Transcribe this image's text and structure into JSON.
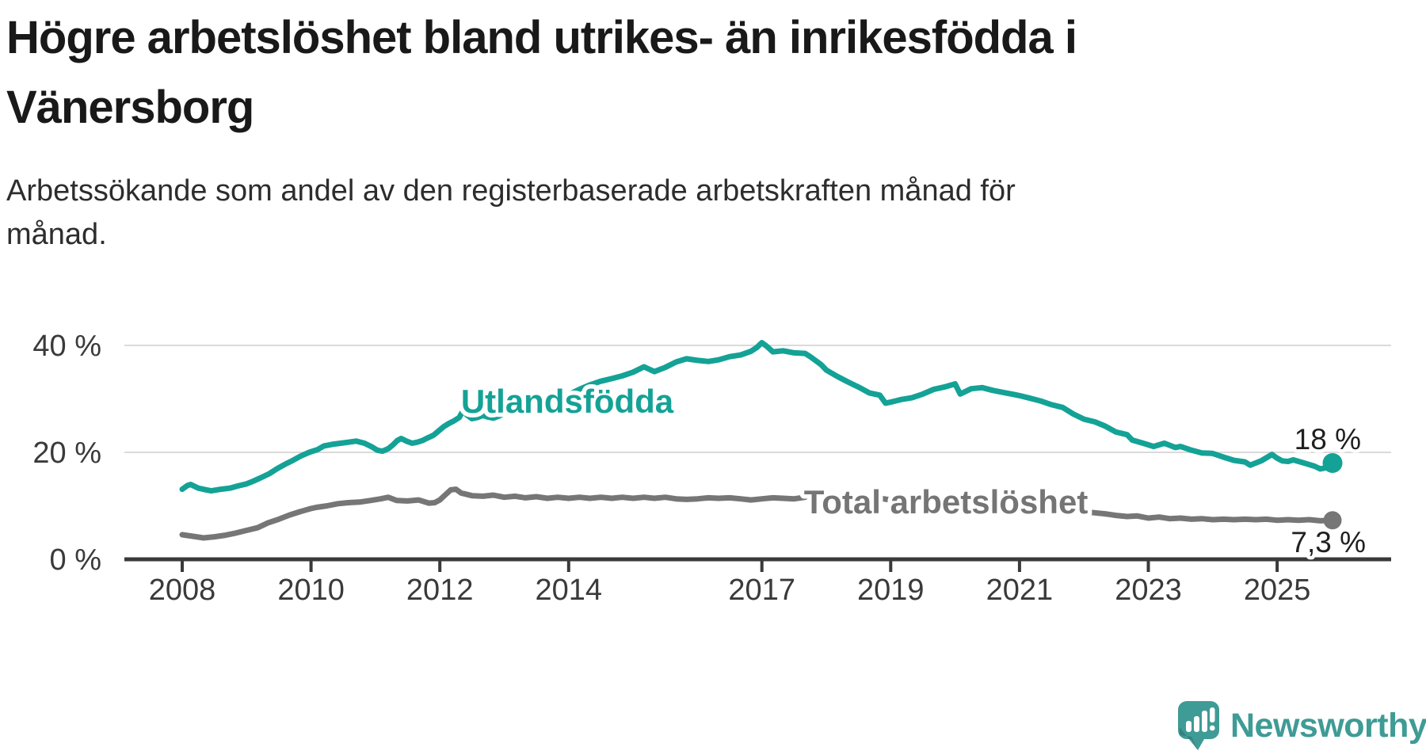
{
  "page": {
    "title_lines": [
      "Högre arbetslöshet bland utrikes- än inrikesfödda i",
      "Vänersborg"
    ],
    "subtitle_lines": [
      "Arbetssökande som andel av den registerbaserade arbetskraften månad för",
      "månad."
    ]
  },
  "logo": {
    "name": "Newsworthy",
    "icon": "speech-bubble-bar-chart-icon"
  },
  "colors": {
    "accent_teal": "#14a296",
    "total_gray": "#767676",
    "logo_teal": "#3f9b95",
    "title_text": "#191919",
    "body_text": "#2d2d2d",
    "axis_text": "#3a3a3a",
    "axis_line": "#3a3a3a",
    "gridline": "#dadada",
    "annotation_text": "#1f1f1f",
    "background": "#ffffff"
  },
  "chart_data": {
    "type": "line",
    "title": "Högre arbetslöshet bland utrikes- än inrikesfödda i Vänersborg",
    "subtitle": "Arbetssökande som andel av den registerbaserade arbetskraften månad för månad.",
    "xlabel": "",
    "ylabel": "",
    "grid": "horizontal",
    "legend": "inline-labels",
    "xlim": [
      2007.1,
      2026.8
    ],
    "ylim": [
      0,
      44
    ],
    "x_ticks": [
      2008,
      2010,
      2012,
      2014,
      2017,
      2019,
      2021,
      2023,
      2025
    ],
    "y_ticks": [
      {
        "value": 0,
        "label": "0 %"
      },
      {
        "value": 20,
        "label": "20 %"
      },
      {
        "value": 40,
        "label": "40 %"
      }
    ],
    "series": [
      {
        "name": "Utlandsfödda",
        "end_label": "18 %",
        "end_value": 18,
        "color": "#14a296",
        "points": [
          [
            2008.0,
            13.1
          ],
          [
            2008.08,
            13.8
          ],
          [
            2008.13,
            14.0
          ],
          [
            2008.25,
            13.3
          ],
          [
            2008.37,
            13.0
          ],
          [
            2008.45,
            12.8
          ],
          [
            2008.6,
            13.1
          ],
          [
            2008.74,
            13.3
          ],
          [
            2008.86,
            13.7
          ],
          [
            2009.0,
            14.1
          ],
          [
            2009.1,
            14.6
          ],
          [
            2009.23,
            15.3
          ],
          [
            2009.35,
            16.0
          ],
          [
            2009.48,
            17.0
          ],
          [
            2009.6,
            17.8
          ],
          [
            2009.72,
            18.5
          ],
          [
            2009.84,
            19.3
          ],
          [
            2009.97,
            20.0
          ],
          [
            2010.1,
            20.5
          ],
          [
            2010.2,
            21.2
          ],
          [
            2010.33,
            21.5
          ],
          [
            2010.46,
            21.7
          ],
          [
            2010.58,
            21.9
          ],
          [
            2010.7,
            22.1
          ],
          [
            2010.83,
            21.7
          ],
          [
            2010.95,
            21.0
          ],
          [
            2011.03,
            20.4
          ],
          [
            2011.11,
            20.2
          ],
          [
            2011.2,
            20.7
          ],
          [
            2011.28,
            21.5
          ],
          [
            2011.34,
            22.2
          ],
          [
            2011.4,
            22.6
          ],
          [
            2011.48,
            22.1
          ],
          [
            2011.57,
            21.7
          ],
          [
            2011.65,
            21.9
          ],
          [
            2011.73,
            22.2
          ],
          [
            2011.81,
            22.7
          ],
          [
            2011.9,
            23.2
          ],
          [
            2011.98,
            24.0
          ],
          [
            2012.06,
            24.8
          ],
          [
            2012.14,
            25.4
          ],
          [
            2012.22,
            25.9
          ],
          [
            2012.3,
            26.5
          ],
          [
            2012.37,
            28.0
          ],
          [
            2012.42,
            27.0
          ],
          [
            2012.5,
            26.3
          ],
          [
            2012.58,
            26.5
          ],
          [
            2012.67,
            26.9
          ],
          [
            2012.75,
            26.6
          ],
          [
            2012.83,
            26.4
          ],
          [
            2012.92,
            26.8
          ],
          [
            2013.0,
            27.3
          ],
          [
            2013.17,
            27.8
          ],
          [
            2013.33,
            27.6
          ],
          [
            2013.5,
            28.1
          ],
          [
            2013.67,
            29.3
          ],
          [
            2013.83,
            30.0
          ],
          [
            2014.0,
            30.8
          ],
          [
            2014.17,
            31.8
          ],
          [
            2014.33,
            32.6
          ],
          [
            2014.5,
            33.3
          ],
          [
            2014.67,
            33.8
          ],
          [
            2014.83,
            34.3
          ],
          [
            2015.0,
            35.0
          ],
          [
            2015.17,
            36.0
          ],
          [
            2015.33,
            35.1
          ],
          [
            2015.5,
            35.9
          ],
          [
            2015.67,
            36.9
          ],
          [
            2015.83,
            37.5
          ],
          [
            2016.0,
            37.2
          ],
          [
            2016.17,
            37.0
          ],
          [
            2016.33,
            37.3
          ],
          [
            2016.5,
            37.9
          ],
          [
            2016.67,
            38.2
          ],
          [
            2016.83,
            38.9
          ],
          [
            2016.92,
            39.6
          ],
          [
            2017.0,
            40.5
          ],
          [
            2017.08,
            39.8
          ],
          [
            2017.17,
            38.8
          ],
          [
            2017.33,
            39.0
          ],
          [
            2017.5,
            38.6
          ],
          [
            2017.67,
            38.5
          ],
          [
            2017.75,
            37.9
          ],
          [
            2017.83,
            37.2
          ],
          [
            2017.92,
            36.4
          ],
          [
            2018.0,
            35.4
          ],
          [
            2018.17,
            34.2
          ],
          [
            2018.33,
            33.2
          ],
          [
            2018.5,
            32.2
          ],
          [
            2018.67,
            31.1
          ],
          [
            2018.83,
            30.7
          ],
          [
            2018.92,
            29.2
          ],
          [
            2019.0,
            29.4
          ],
          [
            2019.17,
            29.9
          ],
          [
            2019.33,
            30.2
          ],
          [
            2019.5,
            30.9
          ],
          [
            2019.67,
            31.8
          ],
          [
            2019.83,
            32.2
          ],
          [
            2020.0,
            32.8
          ],
          [
            2020.08,
            30.9
          ],
          [
            2020.25,
            31.9
          ],
          [
            2020.42,
            32.1
          ],
          [
            2020.58,
            31.6
          ],
          [
            2020.75,
            31.2
          ],
          [
            2020.92,
            30.8
          ],
          [
            2021.0,
            30.6
          ],
          [
            2021.17,
            30.1
          ],
          [
            2021.33,
            29.6
          ],
          [
            2021.5,
            28.9
          ],
          [
            2021.67,
            28.4
          ],
          [
            2021.83,
            27.2
          ],
          [
            2022.0,
            26.2
          ],
          [
            2022.17,
            25.7
          ],
          [
            2022.33,
            24.9
          ],
          [
            2022.5,
            23.8
          ],
          [
            2022.67,
            23.3
          ],
          [
            2022.75,
            22.3
          ],
          [
            2022.92,
            21.7
          ],
          [
            2023.0,
            21.4
          ],
          [
            2023.08,
            21.1
          ],
          [
            2023.25,
            21.7
          ],
          [
            2023.42,
            20.9
          ],
          [
            2023.5,
            21.1
          ],
          [
            2023.67,
            20.4
          ],
          [
            2023.83,
            19.9
          ],
          [
            2024.0,
            19.8
          ],
          [
            2024.17,
            19.1
          ],
          [
            2024.33,
            18.5
          ],
          [
            2024.5,
            18.2
          ],
          [
            2024.58,
            17.6
          ],
          [
            2024.75,
            18.4
          ],
          [
            2024.92,
            19.6
          ],
          [
            2025.0,
            18.9
          ],
          [
            2025.08,
            18.4
          ],
          [
            2025.17,
            18.3
          ],
          [
            2025.25,
            18.6
          ],
          [
            2025.42,
            18.0
          ],
          [
            2025.58,
            17.4
          ],
          [
            2025.67,
            16.9
          ],
          [
            2025.75,
            17.1
          ],
          [
            2025.86,
            18.0
          ]
        ]
      },
      {
        "name": "Total arbetslöshet",
        "end_label": "7,3 %",
        "end_value": 7.3,
        "color": "#767676",
        "points": [
          [
            2008.0,
            4.6
          ],
          [
            2008.17,
            4.3
          ],
          [
            2008.33,
            4.0
          ],
          [
            2008.5,
            4.2
          ],
          [
            2008.67,
            4.5
          ],
          [
            2008.83,
            4.9
          ],
          [
            2009.0,
            5.4
          ],
          [
            2009.17,
            5.9
          ],
          [
            2009.33,
            6.8
          ],
          [
            2009.5,
            7.5
          ],
          [
            2009.67,
            8.3
          ],
          [
            2009.83,
            8.9
          ],
          [
            2010.0,
            9.5
          ],
          [
            2010.08,
            9.7
          ],
          [
            2010.25,
            10.0
          ],
          [
            2010.42,
            10.4
          ],
          [
            2010.58,
            10.6
          ],
          [
            2010.75,
            10.7
          ],
          [
            2010.92,
            11.0
          ],
          [
            2011.08,
            11.3
          ],
          [
            2011.2,
            11.6
          ],
          [
            2011.33,
            11.0
          ],
          [
            2011.5,
            10.9
          ],
          [
            2011.67,
            11.1
          ],
          [
            2011.83,
            10.5
          ],
          [
            2011.92,
            10.6
          ],
          [
            2012.0,
            11.1
          ],
          [
            2012.08,
            12.0
          ],
          [
            2012.17,
            13.0
          ],
          [
            2012.25,
            13.1
          ],
          [
            2012.33,
            12.4
          ],
          [
            2012.5,
            11.9
          ],
          [
            2012.67,
            11.8
          ],
          [
            2012.83,
            12.0
          ],
          [
            2013.0,
            11.6
          ],
          [
            2013.17,
            11.8
          ],
          [
            2013.33,
            11.5
          ],
          [
            2013.5,
            11.7
          ],
          [
            2013.67,
            11.4
          ],
          [
            2013.83,
            11.6
          ],
          [
            2014.0,
            11.4
          ],
          [
            2014.17,
            11.6
          ],
          [
            2014.33,
            11.4
          ],
          [
            2014.5,
            11.6
          ],
          [
            2014.67,
            11.4
          ],
          [
            2014.83,
            11.6
          ],
          [
            2015.0,
            11.4
          ],
          [
            2015.17,
            11.6
          ],
          [
            2015.33,
            11.4
          ],
          [
            2015.5,
            11.6
          ],
          [
            2015.67,
            11.3
          ],
          [
            2015.83,
            11.2
          ],
          [
            2016.0,
            11.3
          ],
          [
            2016.17,
            11.5
          ],
          [
            2016.33,
            11.4
          ],
          [
            2016.5,
            11.5
          ],
          [
            2016.67,
            11.3
          ],
          [
            2016.83,
            11.1
          ],
          [
            2017.0,
            11.3
          ],
          [
            2017.17,
            11.5
          ],
          [
            2017.33,
            11.4
          ],
          [
            2017.5,
            11.3
          ],
          [
            2017.67,
            11.6
          ],
          [
            2017.83,
            12.8
          ],
          [
            2017.92,
            12.6
          ],
          [
            2018.0,
            12.2
          ],
          [
            2018.17,
            11.8
          ],
          [
            2018.33,
            11.5
          ],
          [
            2018.5,
            11.3
          ],
          [
            2018.67,
            11.2
          ],
          [
            2018.83,
            11.4
          ],
          [
            2019.0,
            11.1
          ],
          [
            2019.17,
            11.3
          ],
          [
            2019.33,
            11.0
          ],
          [
            2019.5,
            11.2
          ],
          [
            2019.67,
            11.3
          ],
          [
            2019.83,
            11.5
          ],
          [
            2020.0,
            11.3
          ],
          [
            2020.17,
            11.5
          ],
          [
            2020.33,
            11.4
          ],
          [
            2020.5,
            11.2
          ],
          [
            2020.67,
            11.0
          ],
          [
            2020.83,
            10.7
          ],
          [
            2021.0,
            10.5
          ],
          [
            2021.17,
            10.4
          ],
          [
            2021.33,
            10.1
          ],
          [
            2021.5,
            9.9
          ],
          [
            2021.67,
            9.5
          ],
          [
            2021.83,
            9.2
          ],
          [
            2022.0,
            8.9
          ],
          [
            2022.17,
            8.7
          ],
          [
            2022.33,
            8.5
          ],
          [
            2022.5,
            8.2
          ],
          [
            2022.67,
            8.0
          ],
          [
            2022.83,
            8.1
          ],
          [
            2023.0,
            7.7
          ],
          [
            2023.17,
            7.9
          ],
          [
            2023.33,
            7.6
          ],
          [
            2023.5,
            7.7
          ],
          [
            2023.67,
            7.5
          ],
          [
            2023.83,
            7.6
          ],
          [
            2024.0,
            7.4
          ],
          [
            2024.17,
            7.5
          ],
          [
            2024.33,
            7.4
          ],
          [
            2024.5,
            7.5
          ],
          [
            2024.67,
            7.4
          ],
          [
            2024.83,
            7.5
          ],
          [
            2025.0,
            7.3
          ],
          [
            2025.17,
            7.4
          ],
          [
            2025.33,
            7.3
          ],
          [
            2025.5,
            7.4
          ],
          [
            2025.67,
            7.2
          ],
          [
            2025.86,
            7.3
          ]
        ]
      }
    ]
  }
}
